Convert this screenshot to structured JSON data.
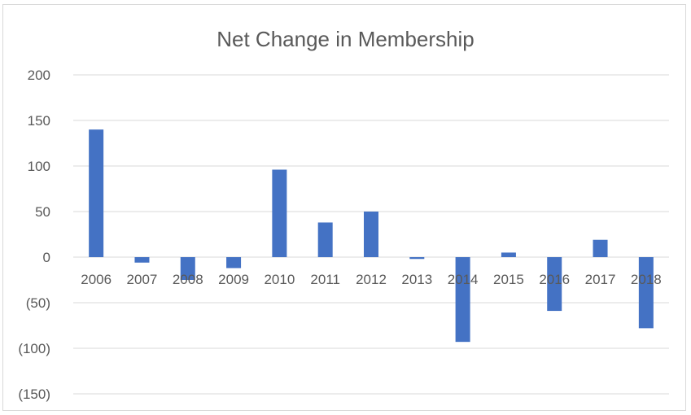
{
  "chart_data": {
    "type": "bar",
    "title": "Net Change in Membership",
    "xlabel": "",
    "ylabel": "",
    "categories": [
      "2006",
      "2007",
      "2008",
      "2009",
      "2010",
      "2011",
      "2012",
      "2013",
      "2014",
      "2015",
      "2016",
      "2017",
      "2018"
    ],
    "series": [
      {
        "values": [
          140,
          -6,
          -25,
          -12,
          96,
          38,
          50,
          -2,
          -93,
          5,
          -59,
          19,
          -78
        ]
      }
    ],
    "ylim": [
      -150,
      200
    ],
    "yticks": [
      200,
      150,
      100,
      50,
      0,
      -50,
      -100,
      -150
    ],
    "ytick_labels": [
      "200",
      "150",
      "100",
      "50",
      "0",
      "(50)",
      "(100)",
      "(150)"
    ],
    "grid": true,
    "legend": "none",
    "colors": {
      "bar": "#4472c4",
      "grid": "#d9d9d9",
      "text": "#595959",
      "border": "#d9d9d9"
    }
  }
}
